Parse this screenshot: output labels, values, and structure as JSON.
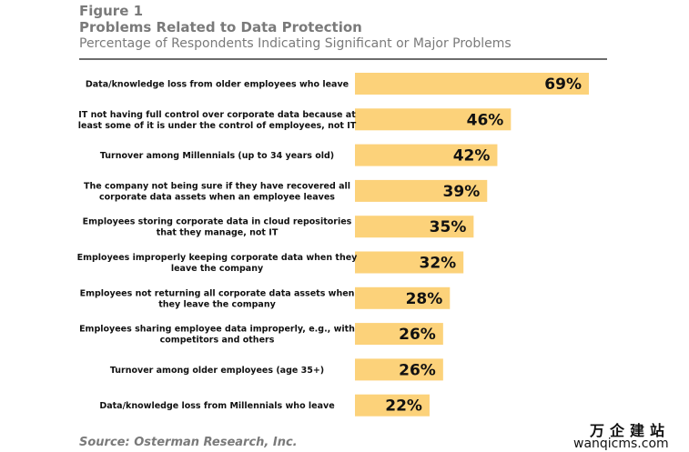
{
  "figure": {
    "label": "Figure 1",
    "title": "Problems Related to Data Protection",
    "subtitle": "Percentage of Respondents Indicating Significant or Major Problems",
    "source": "Source: Osterman Research, Inc."
  },
  "watermark": {
    "cn": "万企建站",
    "en": "wanqicms.com"
  },
  "chart_data": {
    "type": "bar",
    "orientation": "horizontal",
    "bar_color": "#FCD27A",
    "grid": false,
    "categories": [
      [
        "Data/knowledge loss from older employees who leave"
      ],
      [
        "IT not having full control over corporate data because at",
        "least some of it is under the control of employees, not IT"
      ],
      [
        "Turnover among Millennials (up to 34 years old)"
      ],
      [
        "The company not being sure if they have recovered all",
        "corporate data assets when an employee leaves"
      ],
      [
        "Employees storing corporate data in cloud repositories",
        "that they manage, not IT"
      ],
      [
        "Employees improperly keeping corporate data when they",
        "leave the company"
      ],
      [
        "Employees not returning all corporate data assets when",
        "they leave the company"
      ],
      [
        "Employees sharing employee data improperly, e.g., with",
        "competitors and others"
      ],
      [
        "Turnover among older employees (age 35+)"
      ],
      [
        "Data/knowledge loss from Millennials who leave"
      ]
    ],
    "values": [
      69,
      46,
      42,
      39,
      35,
      32,
      28,
      26,
      26,
      22
    ],
    "value_labels": [
      "69%",
      "46%",
      "42%",
      "39%",
      "35%",
      "32%",
      "28%",
      "26%",
      "26%",
      "22%"
    ],
    "xlim": [
      0,
      69
    ]
  }
}
